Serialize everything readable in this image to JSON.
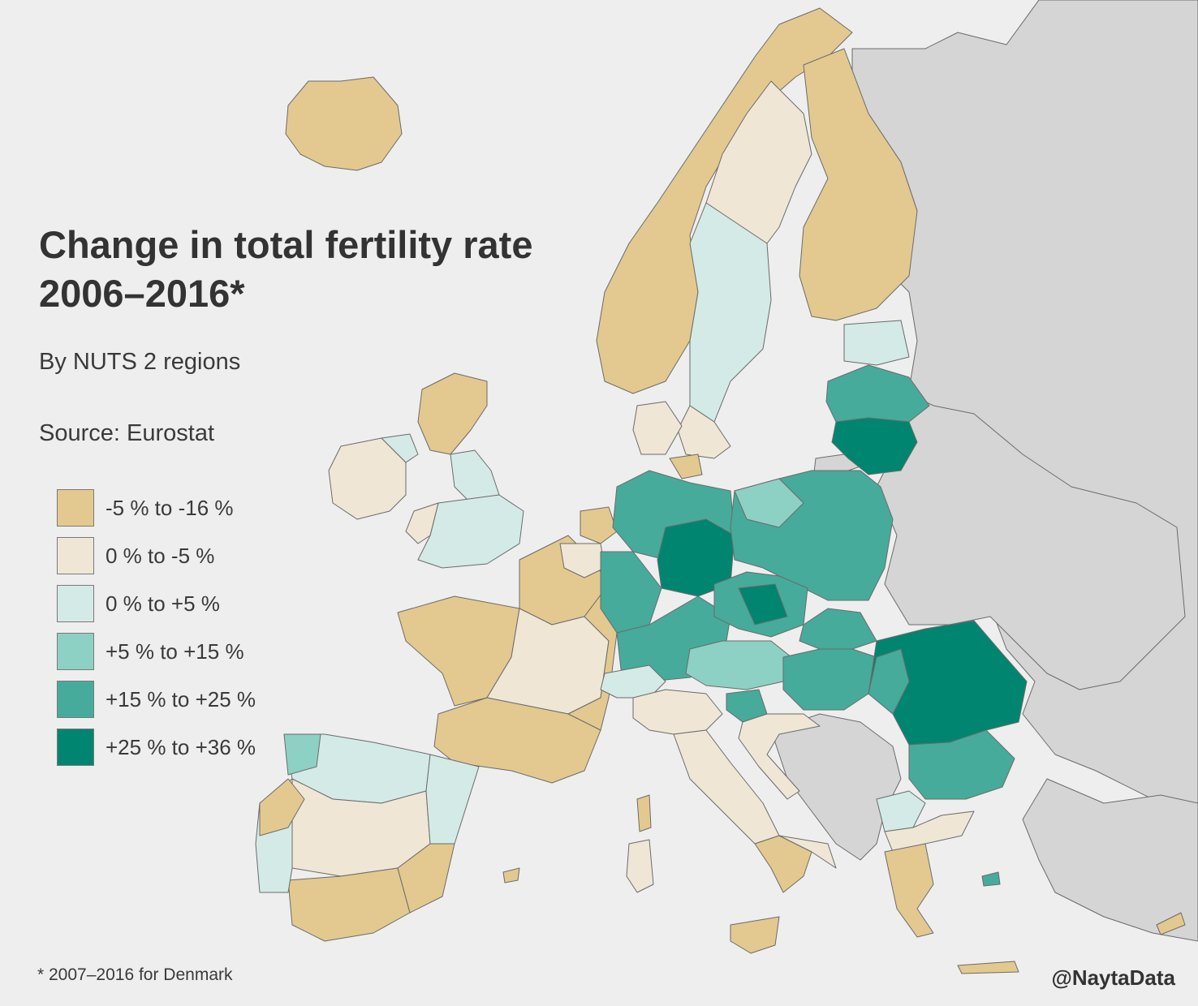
{
  "title_line1": "Change in total fertility rate",
  "title_line2": "2006–2016*",
  "subtitle": "By NUTS 2 regions",
  "source": "Source: Eurostat",
  "legend": [
    {
      "label": "-5 % to -16 %",
      "color": "#e3c98f"
    },
    {
      "label": "0 % to -5 %",
      "color": "#efe6d6"
    },
    {
      "label": "0 % to +5 %",
      "color": "#d4eae6"
    },
    {
      "label": "+5 % to +15 %",
      "color": "#8dd0c4"
    },
    {
      "label": "+15 % to +25 %",
      "color": "#46ab9b"
    },
    {
      "label": "+25 % to +36 %",
      "color": "#008570"
    }
  ],
  "colors": {
    "background": "#eeeeee",
    "no_data": "#d5d5d5",
    "border": "#555555"
  },
  "footnote": "* 2007–2016 for Denmark",
  "credit": "@NaytaData"
}
